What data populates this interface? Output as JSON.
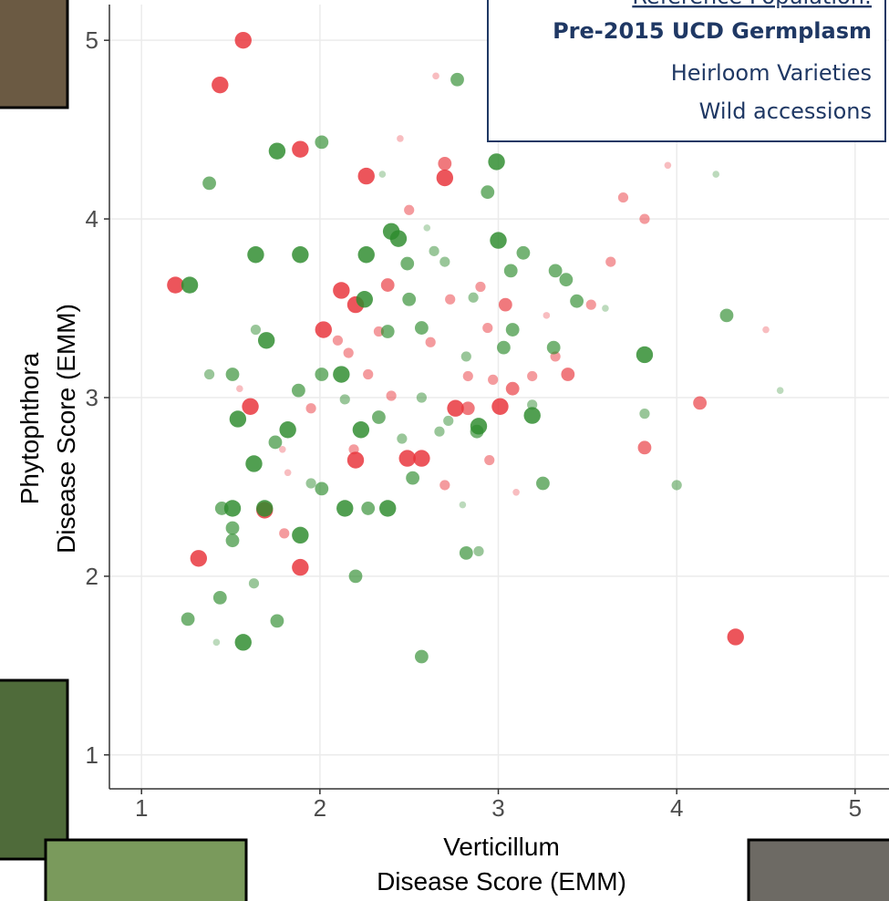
{
  "chart_data": {
    "type": "scatter",
    "xlabel": [
      "Verticillum",
      "Disease Score (EMM)"
    ],
    "ylabel": [
      "Phytophthora",
      "Disease Score (EMM)"
    ],
    "annotations": [
      "Reference Population:",
      "Pre-2015 UCD Germplasm",
      "Heirloom Varieties",
      "Wild accessions"
    ],
    "xlim": [
      0.82,
      5.19
    ],
    "ylim": [
      0.81,
      5.2
    ],
    "xticks": [
      1,
      2,
      3,
      4,
      5
    ],
    "yticks": [
      1,
      2,
      3,
      4,
      5
    ],
    "grid": true,
    "series": [
      {
        "color": "#e8333a",
        "x": [
          1.57,
          1.44,
          1.89,
          1.19,
          2.12,
          2.2,
          2.02,
          1.61,
          1.69,
          1.89,
          1.32,
          2.2,
          2.49,
          2.57,
          2.76,
          3.01,
          3.39,
          4.13,
          4.33,
          3.82,
          2.7,
          2.7,
          2.26,
          2.38,
          3.04,
          2.83,
          2.7,
          2.95,
          3.08,
          3.32,
          3.19,
          2.4,
          1.95,
          2.19,
          2.1,
          2.33,
          2.62,
          2.83,
          2.97,
          3.63,
          3.7,
          3.82,
          2.94,
          2.9,
          2.73,
          2.5,
          2.27,
          1.82,
          1.8,
          1.79,
          2.16,
          3.52,
          3.27,
          2.45,
          3.1,
          4.5,
          3.95,
          2.65,
          1.55
        ],
        "y": [
          5.0,
          4.75,
          4.39,
          3.63,
          3.6,
          3.52,
          3.38,
          2.95,
          2.37,
          2.05,
          2.1,
          2.65,
          2.66,
          2.66,
          2.94,
          2.95,
          3.13,
          2.97,
          1.66,
          2.72,
          4.31,
          4.23,
          4.24,
          3.63,
          3.52,
          2.94,
          2.51,
          2.65,
          3.05,
          3.23,
          3.12,
          3.01,
          2.94,
          2.71,
          3.32,
          3.37,
          3.31,
          3.12,
          3.1,
          3.76,
          4.12,
          4.0,
          3.39,
          3.62,
          3.55,
          4.05,
          3.13,
          2.58,
          2.24,
          2.71,
          3.25,
          3.52,
          3.46,
          4.45,
          2.47,
          3.38,
          4.3,
          4.8,
          3.05
        ],
        "sizes": [
          4,
          4,
          4,
          4,
          4,
          4,
          4,
          4,
          4,
          4,
          4,
          4,
          4,
          4,
          4,
          4,
          3,
          3,
          4,
          3,
          3,
          4,
          4,
          3,
          3,
          3,
          2,
          2,
          3,
          2,
          2,
          2,
          2,
          2,
          2,
          2,
          2,
          2,
          2,
          2,
          2,
          2,
          2,
          2,
          2,
          2,
          2,
          1,
          2,
          1,
          2,
          2,
          1,
          1,
          1,
          1,
          1,
          1,
          1
        ]
      },
      {
        "color": "#2e8b2e",
        "x": [
          2.77,
          2.01,
          1.76,
          1.38,
          2.99,
          2.94,
          2.4,
          2.44,
          3.0,
          2.26,
          2.49,
          1.64,
          1.89,
          2.25,
          2.5,
          2.86,
          3.07,
          3.14,
          3.32,
          3.38,
          3.44,
          4.28,
          4.58,
          3.82,
          3.82,
          4.0,
          1.38,
          1.51,
          1.54,
          1.63,
          1.7,
          1.64,
          1.88,
          2.01,
          2.12,
          2.14,
          2.23,
          2.33,
          2.38,
          2.57,
          2.57,
          2.46,
          2.67,
          2.72,
          2.89,
          2.88,
          3.19,
          3.19,
          3.31,
          3.08,
          2.82,
          1.75,
          1.82,
          1.45,
          1.51,
          1.69,
          1.51,
          1.51,
          1.89,
          2.14,
          2.27,
          2.38,
          2.52,
          2.2,
          1.95,
          2.01,
          1.26,
          1.57,
          1.76,
          1.44,
          1.63,
          2.57,
          2.82,
          2.89,
          3.25,
          3.03,
          2.64,
          2.7,
          1.27,
          2.6,
          3.6,
          2.35,
          1.42,
          4.22,
          2.8
        ],
        "y": [
          4.78,
          4.43,
          4.38,
          4.2,
          4.32,
          4.15,
          3.93,
          3.89,
          3.88,
          3.8,
          3.75,
          3.8,
          3.8,
          3.55,
          3.55,
          3.56,
          3.71,
          3.81,
          3.71,
          3.66,
          3.54,
          3.46,
          3.04,
          3.24,
          2.91,
          2.51,
          3.13,
          3.13,
          2.88,
          2.63,
          3.32,
          3.38,
          3.04,
          3.13,
          3.13,
          2.99,
          2.82,
          2.89,
          3.37,
          3.39,
          3.0,
          2.77,
          2.81,
          2.87,
          2.84,
          2.81,
          2.9,
          2.96,
          3.28,
          3.38,
          3.23,
          2.75,
          2.82,
          2.38,
          2.38,
          2.38,
          2.27,
          2.2,
          2.23,
          2.38,
          2.38,
          2.38,
          2.55,
          2.0,
          2.52,
          2.49,
          1.76,
          1.63,
          1.75,
          1.88,
          1.96,
          1.55,
          2.13,
          2.14,
          2.52,
          3.28,
          3.82,
          3.76,
          3.63,
          3.95,
          3.5,
          4.25,
          1.63,
          4.25,
          2.4
        ],
        "sizes": [
          3,
          3,
          4,
          3,
          4,
          3,
          4,
          4,
          4,
          4,
          3,
          4,
          4,
          4,
          3,
          2,
          3,
          3,
          3,
          3,
          3,
          3,
          1,
          4,
          2,
          2,
          2,
          3,
          4,
          4,
          4,
          2,
          3,
          3,
          4,
          2,
          4,
          3,
          3,
          3,
          2,
          2,
          2,
          2,
          4,
          3,
          4,
          2,
          3,
          3,
          2,
          3,
          4,
          3,
          4,
          4,
          3,
          3,
          4,
          4,
          3,
          4,
          3,
          3,
          2,
          3,
          3,
          4,
          3,
          3,
          2,
          3,
          3,
          2,
          3,
          3,
          2,
          2,
          4,
          1,
          1,
          1,
          1,
          1,
          1
        ]
      }
    ]
  }
}
